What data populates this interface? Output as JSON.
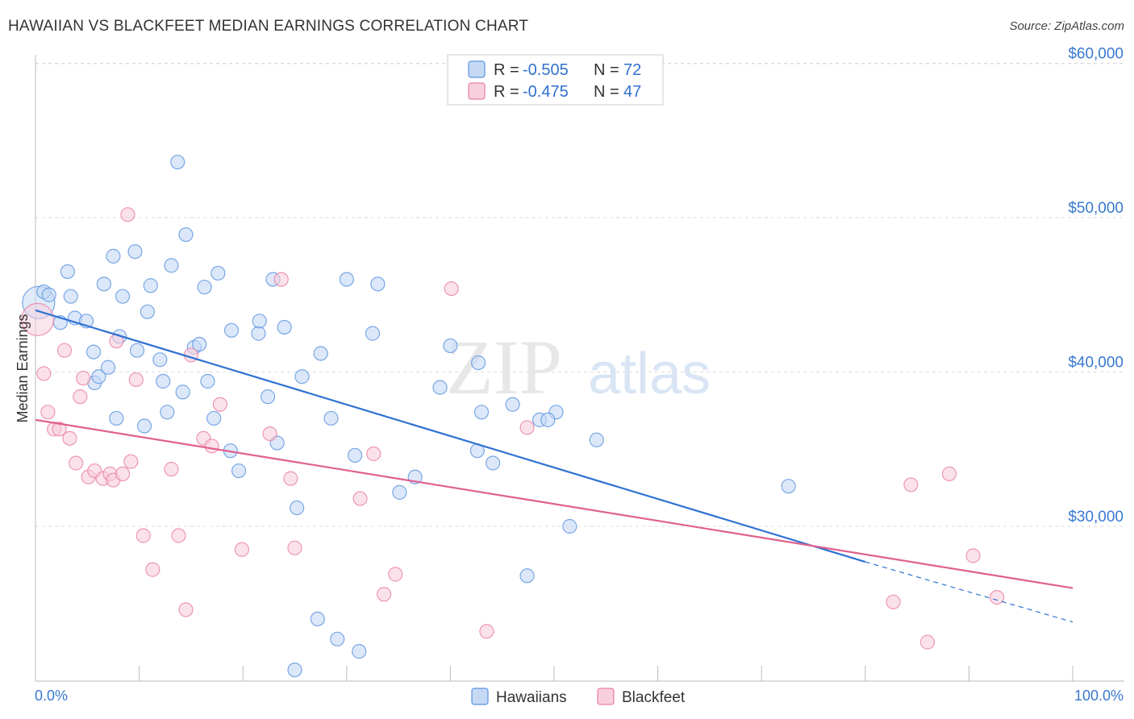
{
  "title": "HAWAIIAN VS BLACKFEET MEDIAN EARNINGS CORRELATION CHART",
  "source": "Source: ZipAtlas.com",
  "watermark": {
    "zip": "ZIP",
    "atlas": "atlas"
  },
  "colors": {
    "hawaiians": "#5b93e0",
    "hawaiians_fill": "#c5d9f5",
    "hawaiians_line": "#2e72d2",
    "blackfeet": "#e87fa2",
    "blackfeet_fill": "#f8cfdc",
    "blackfeet_line": "#e0608e",
    "grid": "#dddddd",
    "tick_text": "#3a78d0"
  },
  "legend": {
    "rows": [
      {
        "r_label": "R =",
        "r_value": "-0.505",
        "n_label": "N =",
        "n_value": "72"
      },
      {
        "r_label": "R =",
        "r_value": "-0.475",
        "n_label": "N =",
        "n_value": "47"
      }
    ]
  },
  "bottom_legend": {
    "items": [
      "Hawaiians",
      "Blackfeet"
    ]
  },
  "chart_data": {
    "type": "scatter",
    "title": "HAWAIIAN VS BLACKFEET MEDIAN EARNINGS CORRELATION CHART",
    "xlabel": "",
    "ylabel": "Median Earnings",
    "xlim": [
      0,
      100
    ],
    "ylim": [
      20000,
      62000
    ],
    "x_tick_labels": [
      "0.0%",
      "100.0%"
    ],
    "y_ticks": [
      30000,
      40000,
      50000,
      60000
    ],
    "y_tick_labels": [
      "$30,000",
      "$40,000",
      "$50,000",
      "$60,000"
    ],
    "grid": true,
    "legend_position": "top-center",
    "series": [
      {
        "name": "Hawaiians",
        "r": -0.505,
        "n": 72,
        "trend": {
          "x0": 0,
          "y0": 44000,
          "x1": 80,
          "y1": 27700,
          "dashed_to_x": 100,
          "dashed_to_y": 23800
        },
        "points": [
          [
            0.3,
            44500,
            "large"
          ],
          [
            0.8,
            45200
          ],
          [
            1.3,
            45000
          ],
          [
            2.4,
            43200
          ],
          [
            3.1,
            46500
          ],
          [
            3.4,
            44900
          ],
          [
            3.8,
            43500
          ],
          [
            4.9,
            43300
          ],
          [
            5.6,
            41300
          ],
          [
            5.7,
            39300
          ],
          [
            6.6,
            45700
          ],
          [
            6.1,
            39700
          ],
          [
            7.0,
            40300
          ],
          [
            7.5,
            47500
          ],
          [
            7.8,
            37000
          ],
          [
            8.1,
            42300
          ],
          [
            8.4,
            44900
          ],
          [
            9.6,
            47800
          ],
          [
            9.8,
            41400
          ],
          [
            10.5,
            36500
          ],
          [
            10.8,
            43900
          ],
          [
            11.1,
            45600
          ],
          [
            12.0,
            40800
          ],
          [
            12.3,
            39400
          ],
          [
            12.7,
            37400
          ],
          [
            13.1,
            46900
          ],
          [
            13.7,
            53600
          ],
          [
            14.2,
            38700
          ],
          [
            14.5,
            48900
          ],
          [
            15.3,
            41600
          ],
          [
            15.8,
            41800
          ],
          [
            16.3,
            45500
          ],
          [
            16.6,
            39400
          ],
          [
            17.2,
            37000
          ],
          [
            17.6,
            46400
          ],
          [
            18.9,
            42700
          ],
          [
            18.8,
            34900
          ],
          [
            19.6,
            33600
          ],
          [
            21.5,
            42500
          ],
          [
            21.6,
            43300
          ],
          [
            22.4,
            38400
          ],
          [
            22.9,
            46000
          ],
          [
            23.3,
            35400
          ],
          [
            24.0,
            42900
          ],
          [
            25.2,
            31200
          ],
          [
            25.7,
            39700
          ],
          [
            25.0,
            20700
          ],
          [
            27.2,
            24000
          ],
          [
            27.5,
            41200
          ],
          [
            28.5,
            37000
          ],
          [
            29.1,
            22700
          ],
          [
            30.0,
            46000
          ],
          [
            30.8,
            34600
          ],
          [
            31.2,
            21900
          ],
          [
            32.5,
            42500
          ],
          [
            33.0,
            45700
          ],
          [
            35.1,
            32200
          ],
          [
            36.6,
            33200
          ],
          [
            39.0,
            39000
          ],
          [
            40.0,
            41700
          ],
          [
            42.7,
            40600
          ],
          [
            42.6,
            34900
          ],
          [
            43.0,
            37400
          ],
          [
            44.1,
            34100
          ],
          [
            46.0,
            37900
          ],
          [
            47.4,
            26800
          ],
          [
            50.2,
            37400
          ],
          [
            48.6,
            36900
          ],
          [
            49.4,
            36900
          ],
          [
            51.5,
            30000
          ],
          [
            54.1,
            35600
          ],
          [
            72.6,
            32600
          ]
        ]
      },
      {
        "name": "Blackfeet",
        "r": -0.475,
        "n": 47,
        "trend": {
          "x0": 0,
          "y0": 36900,
          "x1": 100,
          "y1": 26000
        },
        "points": [
          [
            0.2,
            43400,
            "large"
          ],
          [
            0.8,
            39900
          ],
          [
            1.2,
            37400
          ],
          [
            1.8,
            36300
          ],
          [
            2.3,
            36300
          ],
          [
            2.8,
            41400
          ],
          [
            3.3,
            35700
          ],
          [
            3.9,
            34100
          ],
          [
            4.3,
            38400
          ],
          [
            4.6,
            39600
          ],
          [
            5.1,
            33200
          ],
          [
            5.7,
            33600
          ],
          [
            6.5,
            33100
          ],
          [
            7.2,
            33400
          ],
          [
            7.5,
            33000
          ],
          [
            7.8,
            42000
          ],
          [
            8.4,
            33400
          ],
          [
            8.9,
            50200
          ],
          [
            9.2,
            34200
          ],
          [
            9.7,
            39500
          ],
          [
            10.4,
            29400
          ],
          [
            11.3,
            27200
          ],
          [
            13.1,
            33700
          ],
          [
            13.8,
            29400
          ],
          [
            14.5,
            24600
          ],
          [
            15.0,
            41100
          ],
          [
            16.2,
            35700
          ],
          [
            17.0,
            35200
          ],
          [
            17.8,
            37900
          ],
          [
            19.9,
            28500
          ],
          [
            22.6,
            36000
          ],
          [
            23.7,
            46000
          ],
          [
            24.6,
            33100
          ],
          [
            25.0,
            28600
          ],
          [
            31.3,
            31800
          ],
          [
            32.6,
            34700
          ],
          [
            33.6,
            25600
          ],
          [
            34.7,
            26900
          ],
          [
            40.1,
            45400
          ],
          [
            43.5,
            23200
          ],
          [
            47.4,
            36400
          ],
          [
            82.7,
            25100
          ],
          [
            84.4,
            32700
          ],
          [
            86.0,
            22500
          ],
          [
            88.1,
            33400
          ],
          [
            90.4,
            28100
          ],
          [
            92.7,
            25400
          ]
        ]
      }
    ]
  }
}
